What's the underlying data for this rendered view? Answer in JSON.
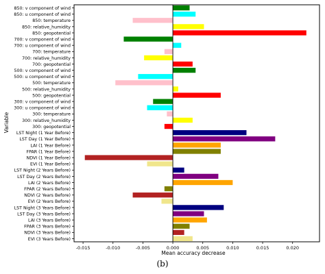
{
  "chart_data": {
    "type": "bar",
    "orientation": "horizontal",
    "xlabel": "Mean accuracy decrease",
    "ylabel": "Variable",
    "xlim": [
      -0.0165,
      0.0245
    ],
    "xticks": [
      -0.015,
      -0.01,
      -0.005,
      0.0,
      0.005,
      0.01,
      0.015,
      0.02
    ],
    "xtick_labels": [
      "-0.015",
      "-0.010",
      "-0.005",
      "0.000",
      "0.005",
      "0.010",
      "0.015",
      "0.020"
    ],
    "grid": false,
    "categories": [
      "850: v component of wind",
      "850: u component of wind",
      "850: temperature",
      "850: relative_humidity",
      "850: geopotential",
      "700: v component of wind",
      "700: u component of wind",
      "700: temperature",
      "700: relative_humidity",
      "700: geopotential",
      "500: v component of wind",
      "500: u component of wind",
      "500: temperature",
      "500: relative_humidity",
      "500: geopotential",
      "300: v component of wind",
      "300: u component of wind",
      "300: temperature",
      "300: relative_humidity",
      "300: geopotential",
      "LST Night (1 Year Before)",
      "LST Day (1 Year Before)",
      "LAI (1 Year Before)",
      "FPAR (1 Year Before)",
      "NDVI (1 Year Before)",
      "EVI (1 Year Before)",
      "LST Night (2 Years Before)",
      "LST Day (2 Years Before)",
      "LAI (2 Years Before)",
      "FPAR (2 Years Before)",
      "NDVI (2 Years Before)",
      "EVI (2 Years Before)",
      "LST Night (3 Years Before)",
      "LST Day (3 Years Before)",
      "LAI (3 Years Before)",
      "FPAR (3 Years Before)",
      "NDVI (3 Years Before)",
      "EVI (3 Years Before)"
    ],
    "values": [
      0.0028,
      0.0038,
      -0.0067,
      0.0052,
      0.0223,
      -0.0082,
      0.0014,
      -0.0014,
      -0.0048,
      0.0033,
      0.0038,
      -0.0058,
      -0.0096,
      0.0009,
      0.008,
      -0.0033,
      -0.0043,
      -0.001,
      0.0033,
      -0.0014,
      0.0123,
      0.0171,
      0.008,
      0.008,
      -0.0147,
      -0.0043,
      0.0019,
      0.0076,
      0.01,
      -0.0014,
      -0.0067,
      -0.0019,
      0.0085,
      0.0052,
      0.0057,
      0.0028,
      0.0019,
      0.0033
    ],
    "colors": [
      "#008000",
      "#00ffff",
      "#ffc0cb",
      "#ffff00",
      "#ff0000",
      "#008000",
      "#00ffff",
      "#ffc0cb",
      "#ffff00",
      "#ff0000",
      "#008000",
      "#00ffff",
      "#ffc0cb",
      "#ffff00",
      "#ff0000",
      "#008000",
      "#00ffff",
      "#ffc0cb",
      "#ffff00",
      "#ff0000",
      "#000080",
      "#800080",
      "#ffa500",
      "#808000",
      "#b22222",
      "#f0e68c",
      "#000080",
      "#800080",
      "#ffa500",
      "#808000",
      "#b22222",
      "#f0e68c",
      "#000080",
      "#800080",
      "#ffa500",
      "#808000",
      "#b22222",
      "#f0e68c"
    ]
  },
  "caption": "(b)"
}
